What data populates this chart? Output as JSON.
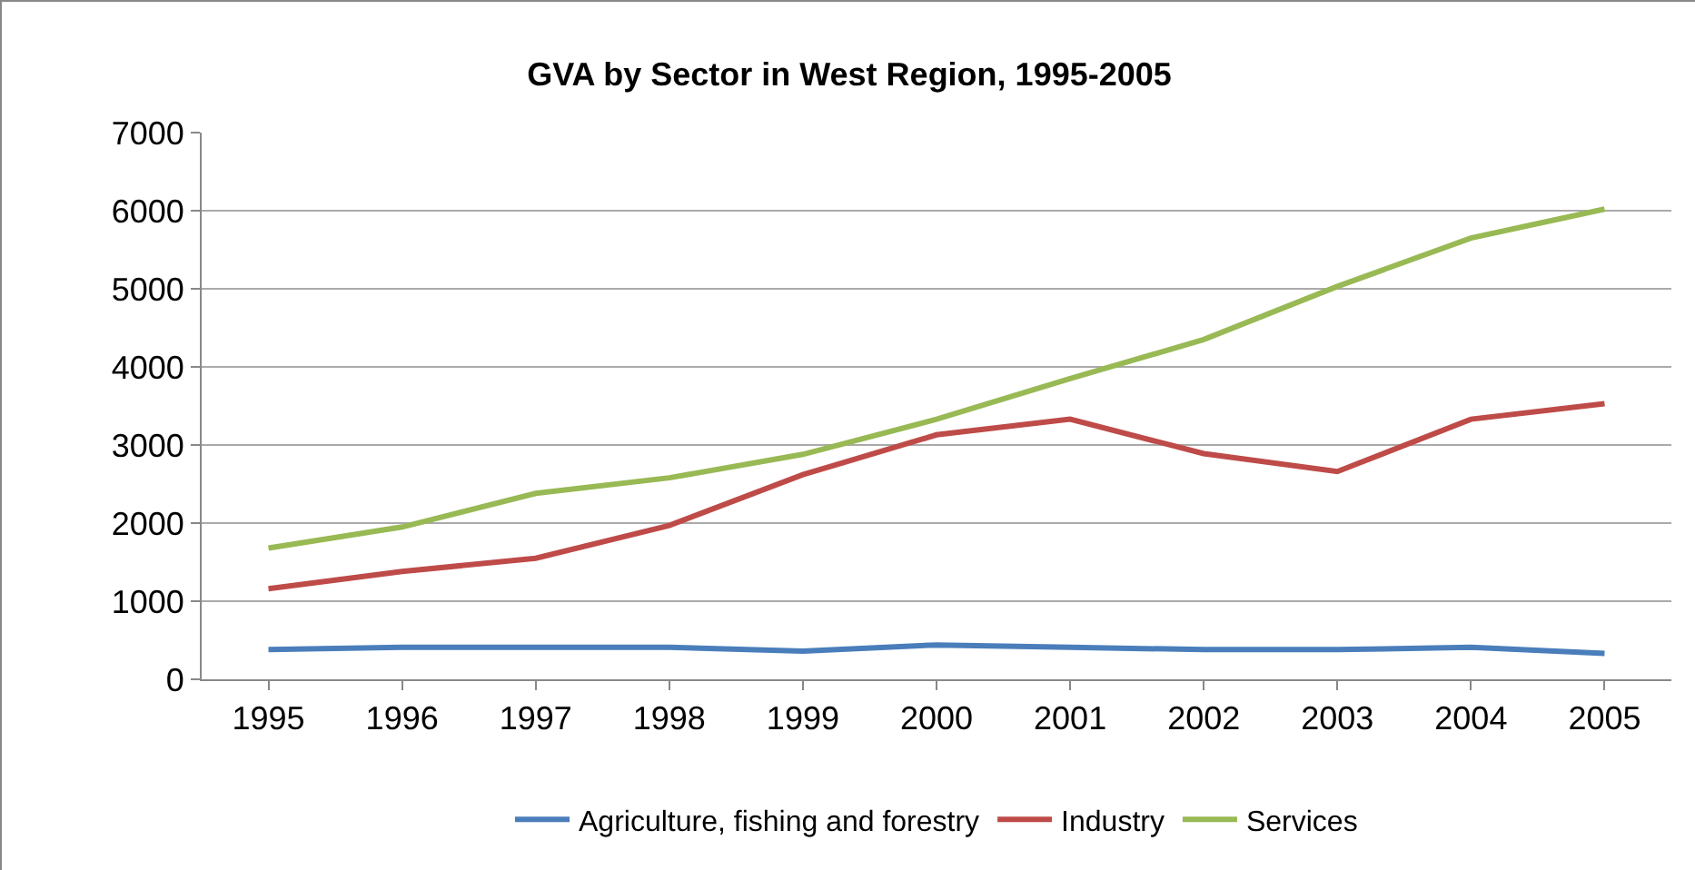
{
  "chart_data": {
    "type": "line",
    "title": "GVA by Sector in West Region, 1995-2005",
    "categories": [
      "1995",
      "1996",
      "1997",
      "1998",
      "1999",
      "2000",
      "2001",
      "2002",
      "2003",
      "2004",
      "2005"
    ],
    "series": [
      {
        "name": "Agriculture, fishing and forestry",
        "color": "#4a7ebb",
        "values": [
          380,
          410,
          410,
          410,
          360,
          440,
          410,
          380,
          380,
          410,
          330
        ]
      },
      {
        "name": "Industry",
        "color": "#be4b48",
        "values": [
          1160,
          1380,
          1550,
          1970,
          2620,
          3130,
          3330,
          2890,
          2660,
          3330,
          3530
        ]
      },
      {
        "name": "Services",
        "color": "#98b954",
        "values": [
          1680,
          1950,
          2380,
          2580,
          2880,
          3330,
          3850,
          4350,
          5030,
          5650,
          6020
        ]
      }
    ],
    "ylim": [
      0,
      7000
    ],
    "yticks": [
      0,
      1000,
      2000,
      3000,
      4000,
      5000,
      6000,
      7000
    ],
    "grid": "y",
    "legend": "bottom",
    "marker": "none",
    "line_style": "solid"
  }
}
